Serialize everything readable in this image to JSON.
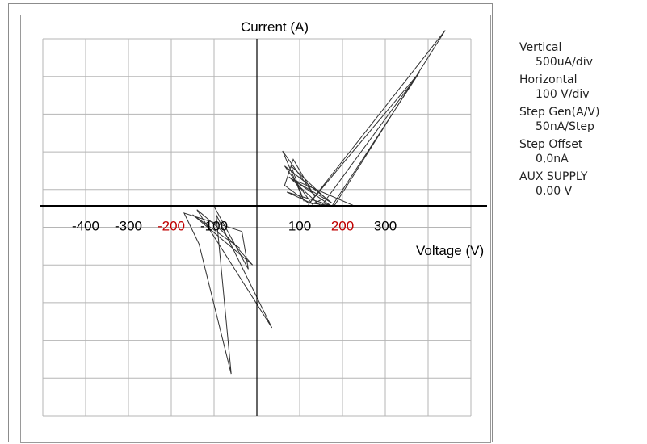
{
  "chart_data": {
    "type": "line",
    "title": "Current (A)",
    "xlabel": "Voltage (V)",
    "ylabel": "Current (A)",
    "xlim": [
      -500,
      500
    ],
    "ylim": [
      -2500,
      2000
    ],
    "grid": true,
    "x_tick_labels": [
      {
        "value": -400,
        "text": "-400",
        "color": "#000000"
      },
      {
        "value": -300,
        "text": "-300",
        "color": "#000000"
      },
      {
        "value": -200,
        "text": "-200",
        "color": "#c00000"
      },
      {
        "value": -100,
        "text": "-100",
        "color": "#000000"
      },
      {
        "value": 100,
        "text": "100",
        "color": "#000000"
      },
      {
        "value": 200,
        "text": "200",
        "color": "#c00000"
      },
      {
        "value": 300,
        "text": "300",
        "color": "#000000"
      }
    ],
    "series": [
      {
        "values": [
          [
            -190,
            0
          ],
          [
            -100,
            0
          ],
          [
            -20,
            -750
          ],
          [
            -35,
            -300
          ],
          [
            -170,
            -80
          ],
          [
            -135,
            -450
          ],
          [
            -60,
            -2000
          ],
          [
            -95,
            -100
          ],
          [
            35,
            -1450
          ],
          [
            -140,
            -40
          ],
          [
            -80,
            -300
          ],
          [
            -10,
            -700
          ],
          [
            -150,
            -100
          ],
          [
            -40,
            -500
          ]
        ]
      },
      {
        "values": [
          [
            190,
            0
          ],
          [
            120,
            40
          ],
          [
            65,
            250
          ],
          [
            85,
            560
          ],
          [
            135,
            120
          ],
          [
            60,
            660
          ],
          [
            110,
            60
          ],
          [
            80,
            480
          ],
          [
            160,
            100
          ],
          [
            130,
            30
          ],
          [
            70,
            170
          ],
          [
            180,
            0
          ],
          [
            440,
            2100
          ],
          [
            120,
            20
          ],
          [
            380,
            1600
          ],
          [
            150,
            0
          ],
          [
            75,
            350
          ],
          [
            175,
            0
          ],
          [
            380,
            1600
          ]
        ]
      },
      {
        "values": [
          [
            190,
            0
          ],
          [
            230,
            0
          ],
          [
            80,
            330
          ],
          [
            175,
            40
          ],
          [
            65,
            480
          ],
          [
            130,
            20
          ]
        ]
      }
    ]
  },
  "settings_panel": {
    "vertical_label": "Vertical",
    "vertical_value": "500uA/div",
    "horizontal_label": "Horizontal",
    "horizontal_value": "100 V/div",
    "step_gen_label": "Step Gen(A/V)",
    "step_gen_value": "50nA/Step",
    "step_offset_label": "Step Offset",
    "step_offset_value": "0,0nA",
    "aux_supply_label": "AUX SUPPLY",
    "aux_supply_value": "0,00 V"
  },
  "colors": {
    "grid": "#b5b5b5",
    "axis": "#000000",
    "trace": "#303030",
    "highlight_tick": "#c00000"
  }
}
